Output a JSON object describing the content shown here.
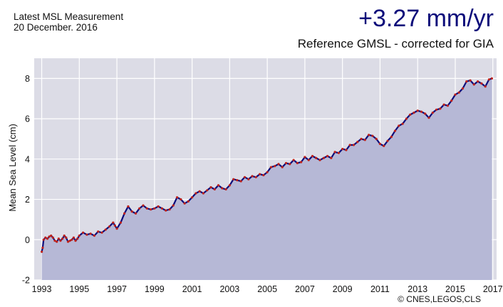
{
  "header": {
    "measurement_label": "Latest MSL Measurement",
    "measurement_date": "20 December. 2016",
    "rate": "+3.27 mm/yr",
    "subtitle": "Reference GMSL - corrected for GIA"
  },
  "credit": "© CNES,LEGOS,CLS",
  "colors": {
    "plot_background": "#dcdce6",
    "fill_area": "#b6b8d6",
    "line": "#0b0b7a",
    "points": "#c0221a",
    "grid": "#ffffff",
    "rate_text": "#0b0b7a"
  },
  "chart_data": {
    "type": "area",
    "title": "",
    "xlabel": "",
    "ylabel": "Mean Sea Level (cm)",
    "xlim": [
      1992.6,
      2017.2
    ],
    "ylim": [
      -2,
      9
    ],
    "grid": true,
    "x_ticks": [
      1993,
      1995,
      1997,
      1999,
      2001,
      2003,
      2005,
      2007,
      2009,
      2011,
      2013,
      2015,
      2017
    ],
    "y_ticks": [
      -2,
      0,
      2,
      4,
      6,
      8
    ],
    "series": [
      {
        "x": [
          1993.0,
          1993.05,
          1993.1,
          1993.2,
          1993.3,
          1993.4,
          1993.5,
          1993.6,
          1993.7,
          1993.8,
          1993.9,
          1994.0,
          1994.1,
          1994.2,
          1994.3,
          1994.4,
          1994.5,
          1994.6,
          1994.7,
          1994.8,
          1994.9,
          1995.0,
          1995.2,
          1995.4,
          1995.6,
          1995.8,
          1996.0,
          1996.2,
          1996.4,
          1996.6,
          1996.8,
          1996.9,
          1997.0,
          1997.2,
          1997.4,
          1997.6,
          1997.8,
          1998.0,
          1998.2,
          1998.4,
          1998.6,
          1998.8,
          1999.0,
          1999.2,
          1999.4,
          1999.6,
          1999.8,
          2000.0,
          2000.2,
          2000.4,
          2000.6,
          2000.8,
          2001.0,
          2001.2,
          2001.4,
          2001.6,
          2001.8,
          2002.0,
          2002.2,
          2002.4,
          2002.6,
          2002.8,
          2003.0,
          2003.2,
          2003.4,
          2003.6,
          2003.8,
          2004.0,
          2004.2,
          2004.4,
          2004.6,
          2004.8,
          2005.0,
          2005.2,
          2005.4,
          2005.6,
          2005.8,
          2006.0,
          2006.2,
          2006.4,
          2006.6,
          2006.8,
          2007.0,
          2007.2,
          2007.4,
          2007.6,
          2007.8,
          2008.0,
          2008.2,
          2008.4,
          2008.6,
          2008.8,
          2009.0,
          2009.2,
          2009.4,
          2009.6,
          2009.8,
          2010.0,
          2010.2,
          2010.4,
          2010.6,
          2010.8,
          2011.0,
          2011.2,
          2011.4,
          2011.6,
          2011.8,
          2012.0,
          2012.2,
          2012.4,
          2012.6,
          2012.8,
          2013.0,
          2013.2,
          2013.4,
          2013.6,
          2013.8,
          2014.0,
          2014.2,
          2014.4,
          2014.6,
          2014.8,
          2015.0,
          2015.2,
          2015.4,
          2015.6,
          2015.8,
          2016.0,
          2016.2,
          2016.4,
          2016.6,
          2016.8,
          2016.95
        ],
        "values": [
          -0.6,
          -0.4,
          0.0,
          0.1,
          0.05,
          0.15,
          0.2,
          0.1,
          -0.05,
          -0.1,
          0.05,
          -0.05,
          0.05,
          0.2,
          0.1,
          -0.1,
          -0.05,
          0.0,
          0.1,
          -0.05,
          0.05,
          0.2,
          0.35,
          0.25,
          0.3,
          0.2,
          0.4,
          0.35,
          0.5,
          0.65,
          0.85,
          0.7,
          0.55,
          0.85,
          1.3,
          1.65,
          1.4,
          1.3,
          1.55,
          1.7,
          1.55,
          1.5,
          1.55,
          1.65,
          1.55,
          1.45,
          1.5,
          1.7,
          2.1,
          2.0,
          1.8,
          1.9,
          2.1,
          2.3,
          2.4,
          2.3,
          2.45,
          2.6,
          2.5,
          2.7,
          2.55,
          2.5,
          2.7,
          3.0,
          2.95,
          2.9,
          3.1,
          3.0,
          3.15,
          3.1,
          3.25,
          3.2,
          3.35,
          3.6,
          3.65,
          3.75,
          3.6,
          3.8,
          3.75,
          3.95,
          3.8,
          3.85,
          4.1,
          3.95,
          4.15,
          4.05,
          3.95,
          4.05,
          4.15,
          4.05,
          4.35,
          4.3,
          4.5,
          4.45,
          4.7,
          4.7,
          4.85,
          5.0,
          4.95,
          5.2,
          5.15,
          5.0,
          4.75,
          4.65,
          4.9,
          5.1,
          5.4,
          5.65,
          5.75,
          6.0,
          6.2,
          6.3,
          6.4,
          6.35,
          6.25,
          6.05,
          6.3,
          6.45,
          6.5,
          6.7,
          6.65,
          6.9,
          7.2,
          7.3,
          7.5,
          7.85,
          7.9,
          7.7,
          7.85,
          7.75,
          7.6,
          7.95,
          8.0
        ]
      }
    ]
  }
}
